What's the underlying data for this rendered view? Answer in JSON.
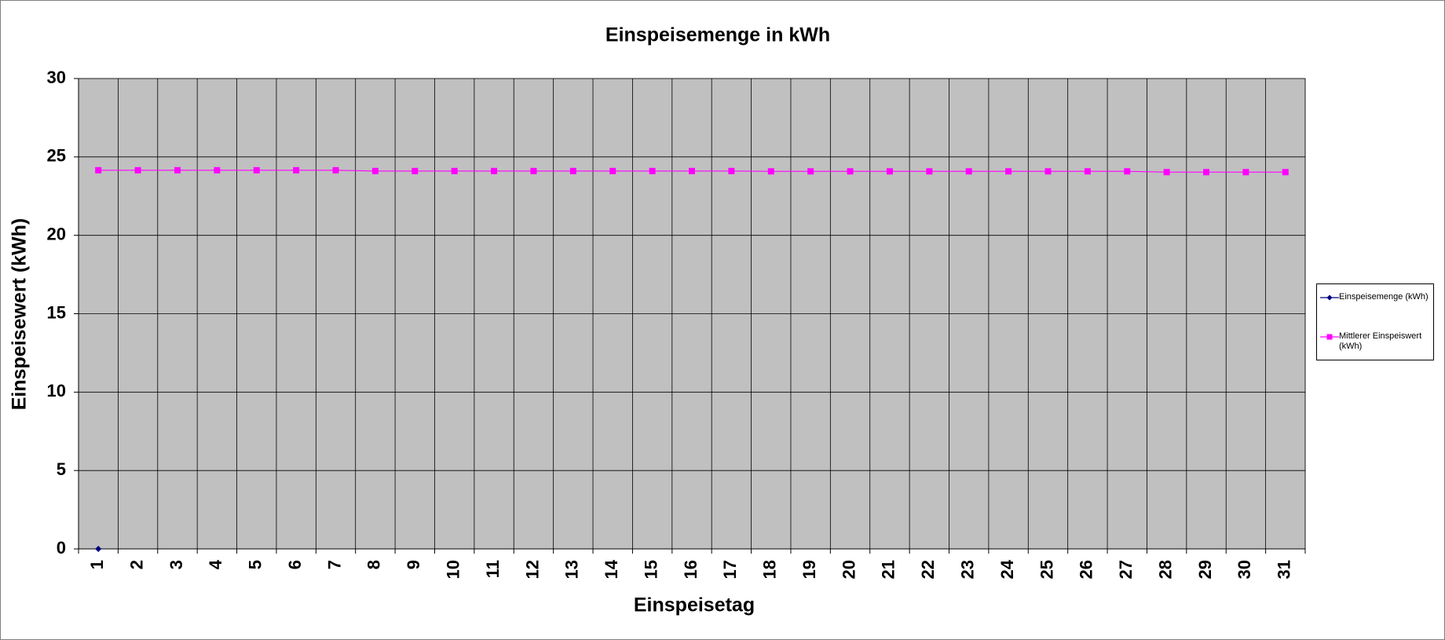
{
  "chart_data": {
    "type": "line",
    "title": "Einspeisemenge in kWh",
    "x_label": "Einspeisetag",
    "y_label": "Einspeisewert  (kWh)",
    "categories": [
      1,
      2,
      3,
      4,
      5,
      6,
      7,
      8,
      9,
      10,
      11,
      12,
      13,
      14,
      15,
      16,
      17,
      18,
      19,
      20,
      21,
      22,
      23,
      24,
      25,
      26,
      27,
      28,
      29,
      30,
      31
    ],
    "series": [
      {
        "name": "Einspeisemenge (kWh)",
        "color": "#000080",
        "marker": "diamond",
        "values": [
          0,
          null,
          null,
          null,
          null,
          null,
          null,
          null,
          null,
          null,
          null,
          null,
          null,
          null,
          null,
          null,
          null,
          null,
          null,
          null,
          null,
          null,
          null,
          null,
          null,
          null,
          null,
          null,
          null,
          null,
          null
        ]
      },
      {
        "name": "Mittlerer Einspeiswert (kWh)",
        "color": "#ff00ff",
        "marker": "square",
        "values": [
          24.15,
          24.15,
          24.15,
          24.15,
          24.15,
          24.15,
          24.15,
          24.1,
          24.1,
          24.1,
          24.1,
          24.1,
          24.1,
          24.1,
          24.1,
          24.1,
          24.1,
          24.08,
          24.08,
          24.08,
          24.08,
          24.08,
          24.08,
          24.08,
          24.08,
          24.08,
          24.08,
          24.03,
          24.03,
          24.03,
          24.03
        ]
      }
    ],
    "ylim": [
      0,
      30
    ],
    "yticks": [
      0,
      5,
      10,
      15,
      20,
      25,
      30
    ],
    "grid": true,
    "plot_background": "#c0c0c0",
    "legend": "right"
  }
}
